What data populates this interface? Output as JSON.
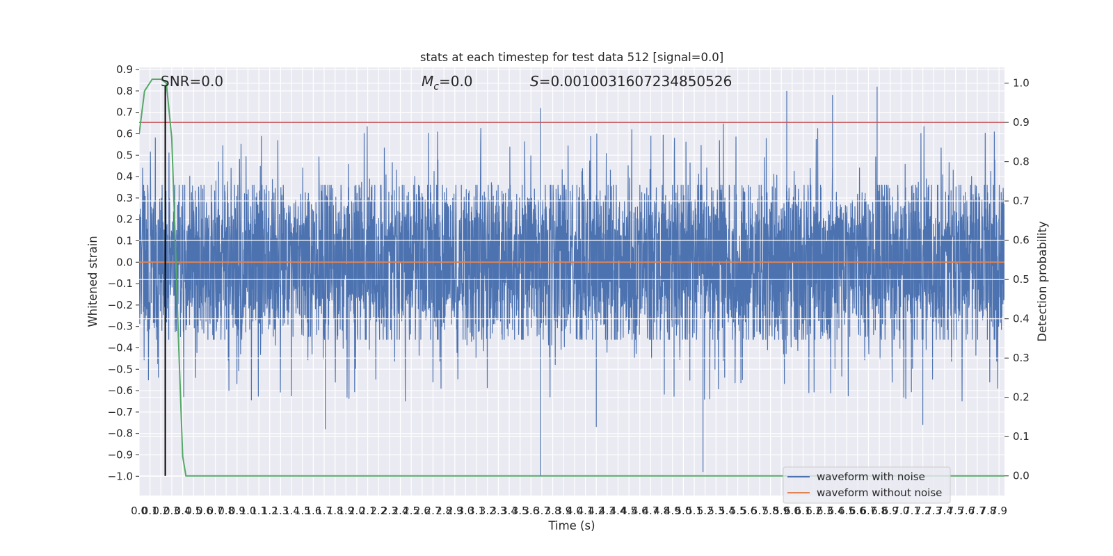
{
  "chart_data": {
    "type": "line",
    "title": "stats at each timestep for test data 512 [signal=0.0]",
    "xlabel": "Time (s)",
    "ylabel": "Whitened strain",
    "ylabel_right": "Detection probability",
    "xlim": [
      0.0,
      7.95
    ],
    "ylim": [
      -1.09,
      0.91
    ],
    "ylim_right": [
      -0.05,
      1.04
    ],
    "x_ticks": [
      0.0,
      0.1,
      0.2,
      0.3,
      0.4,
      0.5,
      0.6,
      0.7,
      0.8,
      0.9,
      1.0,
      1.1,
      1.2,
      1.3,
      1.4,
      1.5,
      1.6,
      1.7,
      1.8,
      1.9,
      2.0,
      2.1,
      2.2,
      2.3,
      2.4,
      2.5,
      2.6,
      2.7,
      2.8,
      2.9,
      3.0,
      3.1,
      3.2,
      3.3,
      3.4,
      3.5,
      3.6,
      3.7,
      3.8,
      3.9,
      4.0,
      4.1,
      4.2,
      4.3,
      4.4,
      4.5,
      4.6,
      4.7,
      4.8,
      4.9,
      5.0,
      5.1,
      5.2,
      5.3,
      5.4,
      5.5,
      5.6,
      5.7,
      5.8,
      5.9,
      6.0,
      6.1,
      6.2,
      6.3,
      6.4,
      6.5,
      6.6,
      6.7,
      6.8,
      6.9,
      7.0,
      7.1,
      7.2,
      7.3,
      7.4,
      7.5,
      7.6,
      7.7,
      7.8,
      7.9
    ],
    "y_ticks": [
      0.9,
      0.8,
      0.7,
      0.6,
      0.5,
      0.4,
      0.3,
      0.2,
      0.1,
      0.0,
      -0.1,
      -0.2,
      -0.3,
      -0.4,
      -0.5,
      -0.6,
      -0.7,
      -0.8,
      -0.9,
      -1.0
    ],
    "y_ticks_right": [
      1.0,
      0.9,
      0.8,
      0.7,
      0.6,
      0.5,
      0.4,
      0.3,
      0.2,
      0.1,
      0.0
    ],
    "grid": true,
    "legend_position": "bottom-right",
    "annotations": {
      "snr": "SNR=0.0",
      "mc_symbol": "M",
      "mc_subscript": "c",
      "mc_value": "=0.0",
      "s_symbol": "S",
      "s_value": "=0.0010031607234850526"
    },
    "series": [
      {
        "name": "waveform with noise",
        "color": "#4c72b0",
        "description": "dense noise strain samples, typical envelope +/-0.3, peaks up to +0.82 and down to -1.0",
        "typical_amplitude": 0.3,
        "peaks": [
          {
            "x": 3.69,
            "y": 0.72
          },
          {
            "x": 3.69,
            "y": -1.0
          },
          {
            "x": 5.18,
            "y": -0.98
          },
          {
            "x": 5.95,
            "y": 0.8
          },
          {
            "x": 6.37,
            "y": 0.78
          },
          {
            "x": 6.78,
            "y": 0.82
          },
          {
            "x": 4.2,
            "y": -0.77
          },
          {
            "x": 7.2,
            "y": -0.76
          },
          {
            "x": 1.71,
            "y": -0.78
          }
        ]
      },
      {
        "name": "waveform without noise",
        "color": "#dd8452",
        "x": [
          0.0,
          7.95
        ],
        "y": [
          0.0,
          0.0
        ]
      },
      {
        "name": "detection probability",
        "color": "#55a868",
        "axis": "right",
        "x": [
          0.0,
          0.05,
          0.12,
          0.2,
          0.25,
          0.3,
          0.33,
          0.36,
          0.4,
          0.43,
          0.5,
          2.4,
          2.5,
          7.95
        ],
        "y": [
          0.87,
          0.98,
          1.01,
          1.01,
          1.0,
          0.86,
          0.62,
          0.36,
          0.05,
          0.0,
          0.0,
          0.0,
          0.0,
          0.0
        ]
      }
    ],
    "threshold_line": {
      "axis": "right",
      "value": 0.9,
      "color": "#c44e52"
    },
    "marker_line": {
      "x": 0.24,
      "color": "#000000"
    }
  }
}
